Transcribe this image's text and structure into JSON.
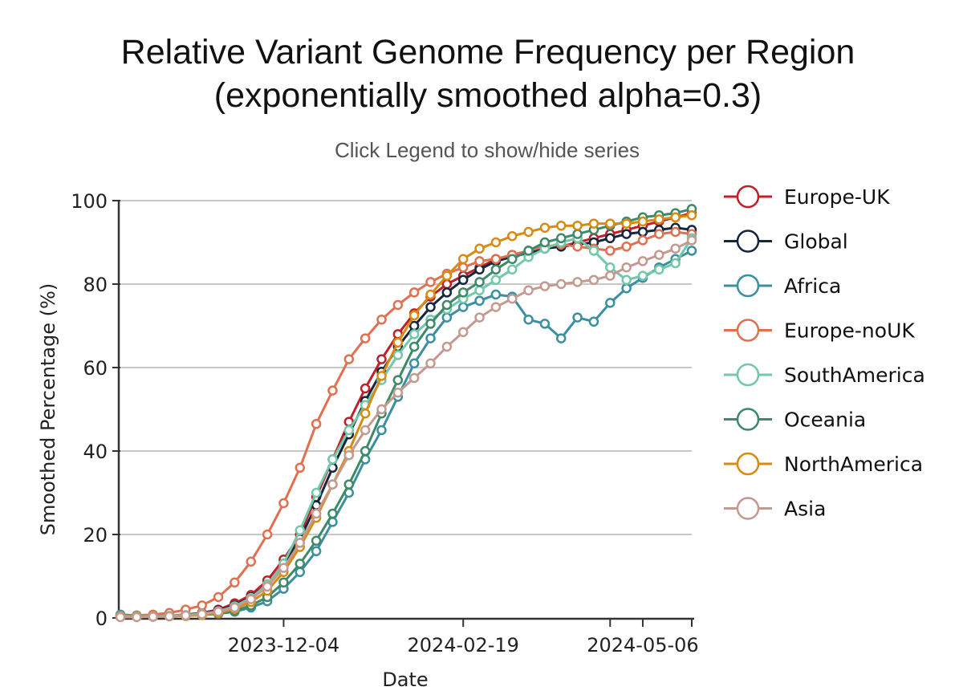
{
  "chart_data": {
    "type": "line",
    "title_line1": "Relative Variant Genome Frequency per Region",
    "title_line2": "(exponentially smoothed alpha=0.3)",
    "subtitle": "Click Legend to show/hide series",
    "xlabel": "Date",
    "ylabel": "Smoothed Percentage (%)",
    "ylim": [
      0,
      100
    ],
    "yticks": [
      0,
      20,
      40,
      60,
      80,
      100
    ],
    "xstart": "2023-09-25",
    "xend": "2024-05-27",
    "xstep_days": 7,
    "xticks": [
      {
        "date": "2023-12-04",
        "label": "2023-12-04"
      },
      {
        "date": "2024-02-19",
        "label": "2024-02-19"
      },
      {
        "date": "2024-04-22",
        "label": ""
      },
      {
        "date": "2024-05-06",
        "label": "2024-05-06"
      },
      {
        "date": "2024-05-27",
        "label": ""
      }
    ],
    "grid": true,
    "legend_position": "right",
    "series": [
      {
        "name": "Europe-UK",
        "color": "#c0202a",
        "values": [
          0.3,
          0.3,
          0.4,
          0.5,
          0.8,
          1.2,
          2.0,
          3.5,
          5.5,
          9,
          14,
          20,
          29,
          38,
          47,
          55,
          62,
          68,
          73,
          77,
          80,
          82,
          84,
          86,
          87,
          88,
          89,
          89,
          90,
          91,
          92,
          93,
          94,
          95,
          96,
          97
        ]
      },
      {
        "name": "Global",
        "color": "#15263f",
        "values": [
          0.3,
          0.3,
          0.4,
          0.5,
          0.7,
          1.1,
          1.8,
          3.0,
          5.0,
          8,
          13,
          19,
          27,
          36,
          44,
          52,
          59,
          65,
          70,
          74.5,
          78,
          81,
          83.5,
          85.5,
          86.5,
          87.5,
          88.5,
          89,
          89.5,
          90,
          91,
          92,
          92.5,
          93,
          93.5,
          93
        ]
      },
      {
        "name": "Africa",
        "color": "#3a8fa0",
        "values": [
          0.8,
          0.6,
          0.5,
          0.5,
          0.6,
          0.8,
          1.0,
          1.5,
          2.5,
          4,
          7,
          11,
          16,
          23,
          30,
          38,
          45,
          53,
          61,
          67,
          72,
          74.5,
          76,
          77.5,
          77,
          71.5,
          70.5,
          67,
          72,
          71,
          75.5,
          79,
          81.5,
          84,
          86,
          88
        ]
      },
      {
        "name": "Europe-noUK",
        "color": "#e07050",
        "values": [
          0.5,
          0.6,
          0.8,
          1.2,
          2.0,
          3.0,
          5.0,
          8.5,
          13.5,
          20,
          27.5,
          36,
          46.5,
          54.5,
          62,
          67,
          71.5,
          75,
          78,
          80.5,
          82.5,
          84,
          85.5,
          86,
          87,
          88,
          89,
          89.5,
          89,
          88.5,
          88,
          89,
          90.5,
          92,
          92.5,
          92
        ]
      },
      {
        "name": "SouthAmerica",
        "color": "#72c8a8",
        "values": [
          0.4,
          0.4,
          0.4,
          0.5,
          0.7,
          1.0,
          1.6,
          2.8,
          4.8,
          8,
          13,
          21,
          30,
          38,
          45,
          51,
          57,
          63,
          68,
          71.5,
          74,
          76.5,
          78.5,
          81,
          83.5,
          86.5,
          88.5,
          90,
          91,
          88,
          84,
          81,
          82,
          83.5,
          85,
          91
        ]
      },
      {
        "name": "Oceania",
        "color": "#3d8a68",
        "values": [
          0.3,
          0.3,
          0.3,
          0.4,
          0.5,
          0.7,
          1.0,
          1.7,
          3.0,
          5,
          8.5,
          13,
          18.5,
          25,
          32,
          40,
          49,
          57,
          65,
          70.5,
          75,
          78,
          80.5,
          83.5,
          86,
          88,
          90,
          91,
          92,
          93,
          94,
          95,
          96,
          96.5,
          97,
          98
        ]
      },
      {
        "name": "NorthAmerica",
        "color": "#d98a10",
        "values": [
          0.3,
          0.3,
          0.3,
          0.4,
          0.5,
          0.7,
          1.2,
          2.2,
          3.8,
          6.5,
          11,
          17,
          24,
          32,
          40,
          49,
          58,
          66,
          72.5,
          77.5,
          82,
          86,
          88.5,
          90,
          91.5,
          92.5,
          93.5,
          94,
          94,
          94.5,
          94.5,
          94.5,
          95,
          95.5,
          96,
          96.5
        ]
      },
      {
        "name": "Asia",
        "color": "#c49a90",
        "values": [
          0.2,
          0.2,
          0.3,
          0.4,
          0.6,
          0.9,
          1.5,
          2.5,
          4.5,
          7.5,
          12,
          18,
          25,
          32,
          39,
          45,
          50,
          54,
          57.5,
          61,
          65,
          68.5,
          72,
          74.5,
          76.5,
          78.5,
          79.5,
          80,
          80.5,
          81,
          82,
          84,
          85.5,
          87,
          88.5,
          90.5
        ]
      }
    ]
  }
}
